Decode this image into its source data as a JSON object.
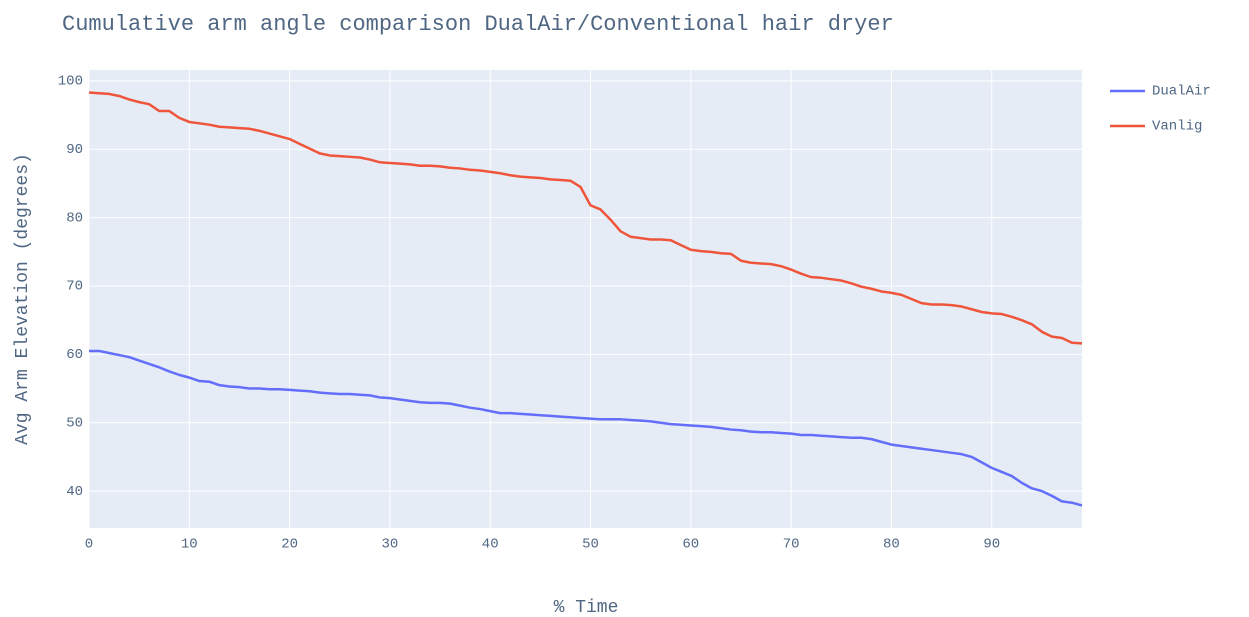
{
  "chart_data": {
    "type": "line",
    "title": "Cumulative arm angle comparison DualAir/Conventional hair dryer",
    "x_label": "% Time",
    "y_label": "Avg Arm Elevation (degrees)",
    "x": [
      0,
      1,
      2,
      3,
      4,
      5,
      6,
      7,
      8,
      9,
      10,
      11,
      12,
      13,
      14,
      15,
      16,
      17,
      18,
      19,
      20,
      21,
      22,
      23,
      24,
      25,
      26,
      27,
      28,
      29,
      30,
      31,
      32,
      33,
      34,
      35,
      36,
      37,
      38,
      39,
      40,
      41,
      42,
      43,
      44,
      45,
      46,
      47,
      48,
      49,
      50,
      51,
      52,
      53,
      54,
      55,
      56,
      57,
      58,
      59,
      60,
      61,
      62,
      63,
      64,
      65,
      66,
      67,
      68,
      69,
      70,
      71,
      72,
      73,
      74,
      75,
      76,
      77,
      78,
      79,
      80,
      81,
      82,
      83,
      84,
      85,
      86,
      87,
      88,
      89,
      90,
      91,
      92,
      93,
      94,
      95,
      96,
      97,
      98,
      99
    ],
    "series": [
      {
        "name": "DualAir",
        "color": "#636efa",
        "values": [
          60.5,
          60.5,
          60.2,
          59.9,
          59.6,
          59.1,
          58.6,
          58.1,
          57.5,
          57.0,
          56.6,
          56.1,
          56.0,
          55.5,
          55.3,
          55.2,
          55.0,
          55.0,
          54.9,
          54.9,
          54.8,
          54.7,
          54.6,
          54.4,
          54.3,
          54.2,
          54.2,
          54.1,
          54.0,
          53.7,
          53.6,
          53.4,
          53.2,
          53.0,
          52.9,
          52.9,
          52.8,
          52.5,
          52.2,
          52.0,
          51.7,
          51.4,
          51.4,
          51.3,
          51.2,
          51.1,
          51.0,
          50.9,
          50.8,
          50.7,
          50.6,
          50.5,
          50.5,
          50.5,
          50.4,
          50.3,
          50.2,
          50.0,
          49.8,
          49.7,
          49.6,
          49.5,
          49.4,
          49.2,
          49.0,
          48.9,
          48.7,
          48.6,
          48.6,
          48.5,
          48.4,
          48.2,
          48.2,
          48.1,
          48.0,
          47.9,
          47.8,
          47.8,
          47.6,
          47.2,
          46.8,
          46.6,
          46.4,
          46.2,
          46.0,
          45.8,
          45.6,
          45.4,
          45.0,
          44.2,
          43.4,
          42.8,
          42.2,
          41.2,
          40.4,
          40.0,
          39.3,
          38.5,
          38.3,
          37.9
        ]
      },
      {
        "name": "Vanlig",
        "color": "#ef553b",
        "values": [
          98.3,
          98.2,
          98.1,
          97.8,
          97.3,
          96.9,
          96.6,
          95.6,
          95.6,
          94.6,
          94.0,
          93.8,
          93.6,
          93.3,
          93.2,
          93.1,
          93.0,
          92.7,
          92.3,
          91.9,
          91.5,
          90.8,
          90.1,
          89.4,
          89.1,
          89.0,
          88.9,
          88.8,
          88.5,
          88.1,
          88.0,
          87.9,
          87.8,
          87.6,
          87.6,
          87.5,
          87.3,
          87.2,
          87.0,
          86.9,
          86.7,
          86.5,
          86.2,
          86.0,
          85.9,
          85.8,
          85.6,
          85.5,
          85.4,
          84.5,
          81.8,
          81.2,
          79.7,
          78.0,
          77.2,
          77.0,
          76.8,
          76.8,
          76.7,
          76.0,
          75.3,
          75.1,
          75.0,
          74.8,
          74.7,
          73.7,
          73.4,
          73.3,
          73.2,
          72.9,
          72.4,
          71.8,
          71.3,
          71.2,
          71.0,
          70.8,
          70.4,
          69.9,
          69.6,
          69.2,
          69.0,
          68.7,
          68.1,
          67.5,
          67.3,
          67.3,
          67.2,
          67.0,
          66.6,
          66.2,
          66.0,
          65.9,
          65.5,
          65.0,
          64.4,
          63.3,
          62.6,
          62.4,
          61.7,
          61.6
        ]
      }
    ],
    "xlim": [
      0,
      99
    ],
    "xticks": [
      0,
      10,
      20,
      30,
      40,
      50,
      60,
      70,
      80,
      90
    ],
    "ylim": [
      34.6,
      101.6
    ],
    "yticks": [
      40,
      50,
      60,
      70,
      80,
      90,
      100
    ],
    "grid": true,
    "legend": "right"
  }
}
